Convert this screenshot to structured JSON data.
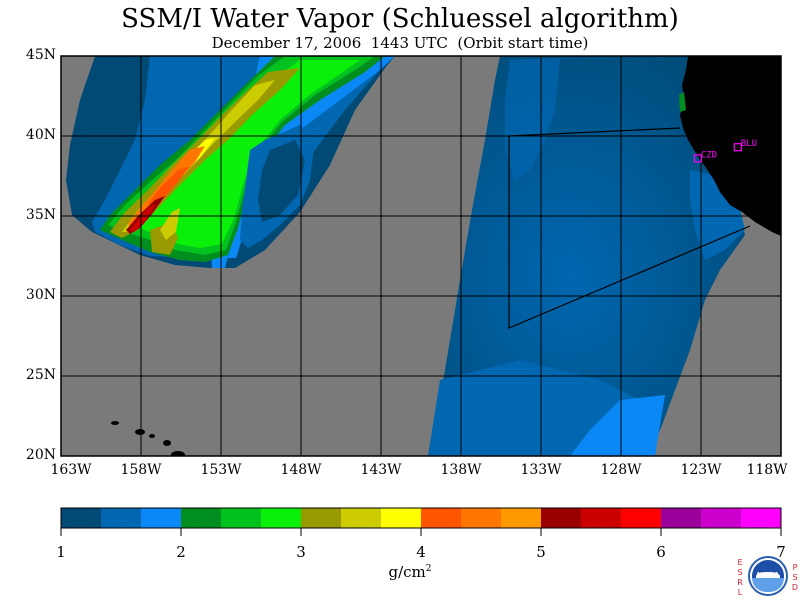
{
  "title": "SSM/I Water Vapor (Schluessel algorithm)",
  "subtitle": "December 17, 2006  1443 UTC  (Orbit start time)",
  "lat_labels": [
    "45N",
    "40N",
    "35N",
    "30N",
    "25N",
    "20N"
  ],
  "lon_labels": [
    "163W",
    "158W",
    "153W",
    "148W",
    "143W",
    "138W",
    "133W",
    "128W",
    "123W",
    "118W"
  ],
  "stations": [
    {
      "name": "CZD",
      "lat": 38.6,
      "lon": -123.2
    },
    {
      "name": "BLU",
      "lat": 39.3,
      "lon": -120.7
    }
  ],
  "colorbar": {
    "min": 1,
    "max": 7,
    "tick_labels": [
      "1",
      "2",
      "3",
      "4",
      "5",
      "6",
      "7"
    ],
    "unit": "g/cm",
    "unit_exponent": "2",
    "colors": [
      "#004a75",
      "#0067b0",
      "#0a88f5",
      "#008f1f",
      "#00c21e",
      "#0af00a",
      "#999900",
      "#cccc00",
      "#ffff00",
      "#ff5500",
      "#ff7700",
      "#ff9900",
      "#990000",
      "#cc0000",
      "#ff0000",
      "#9a009a",
      "#cc00cc",
      "#ff00ff"
    ]
  },
  "colors": {
    "no_data": "#7a7a7a",
    "land": "#000000",
    "station": "#ff00ff",
    "logo_text": "#cc2233"
  },
  "logo": {
    "left_letters": [
      "E",
      "S",
      "R",
      "L"
    ],
    "right_letters": [
      "P",
      "S",
      "D"
    ],
    "center_text": "NOAA"
  }
}
